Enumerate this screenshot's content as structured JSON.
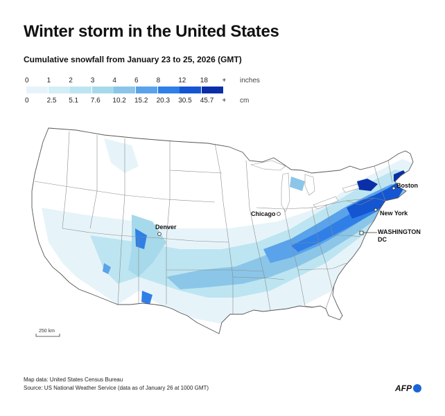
{
  "title": "Winter storm in the United States",
  "subtitle": "Cumulative snowfall from January 23 to 25, 2026 (GMT)",
  "legend": {
    "inches_label": "inches",
    "cm_label": "cm",
    "inches": [
      "0",
      "1",
      "2",
      "3",
      "4",
      "6",
      "8",
      "12",
      "18",
      "+"
    ],
    "cm": [
      "0",
      "2.5",
      "5.1",
      "7.6",
      "10.2",
      "15.2",
      "20.3",
      "30.5",
      "45.7",
      "+"
    ],
    "colors": [
      "#e6f4fa",
      "#d2eef6",
      "#bce5f1",
      "#a6d9ea",
      "#8bc6e8",
      "#5aa3ea",
      "#2f7fe6",
      "#1456d2",
      "#0a2fa8"
    ]
  },
  "cities": {
    "denver": "Denver",
    "chicago": "Chicago",
    "boston": "Boston",
    "new_york": "New York",
    "washington_1": "WASHINGTON",
    "washington_2": "DC"
  },
  "scale_bar": "250 km",
  "footer": {
    "map_data": "Map data: United States Census Bureau",
    "source": "Source: US National Weather Service (data as of January 26 at 1000 GMT)"
  },
  "logo": "AFP"
}
